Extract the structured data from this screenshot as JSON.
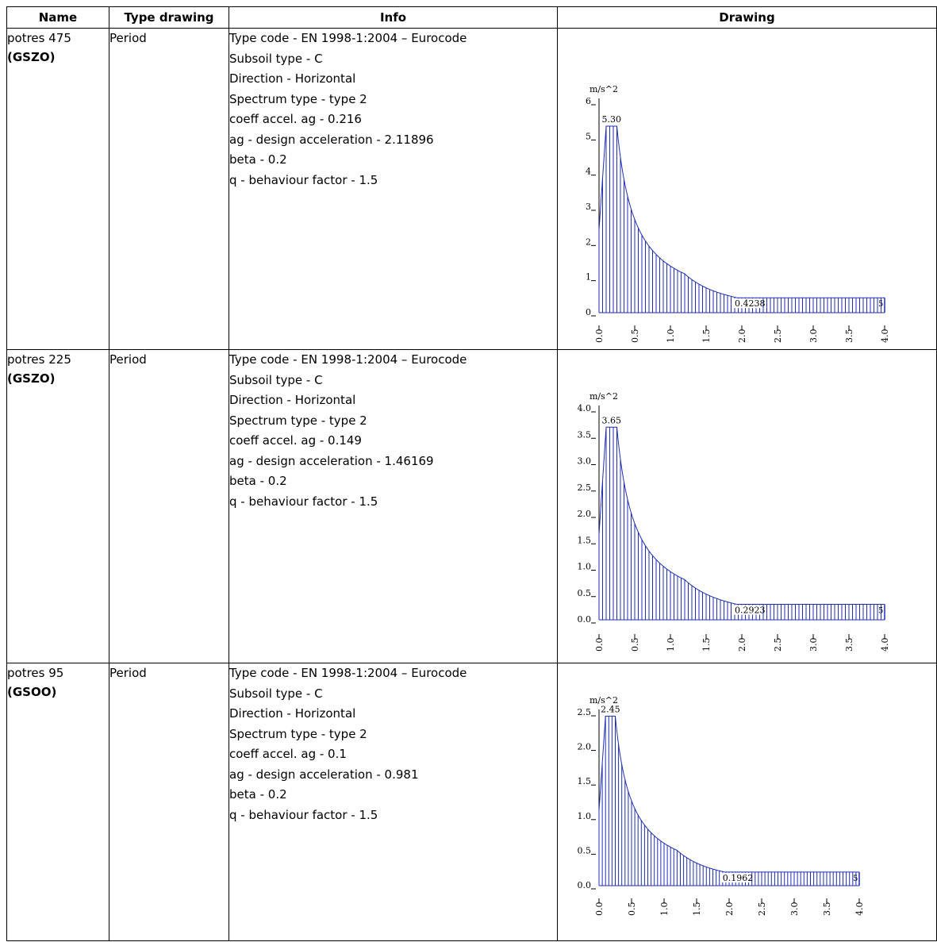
{
  "table": {
    "headers": [
      "Name",
      "Type drawing",
      "Info",
      "Drawing"
    ],
    "rows": [
      {
        "name": "potres 475",
        "code": "(GSZO)",
        "type": "Period",
        "info": [
          "Type code - EN 1998-1:2004 – Eurocode",
          "Subsoil type - C",
          "Direction - Horizontal",
          "Spectrum type - type 2",
          "coeff accel. ag - 0.216",
          "ag - design acceleration - 2.11896",
          "beta - 0.2",
          "q - behaviour factor - 1.5"
        ]
      },
      {
        "name": "potres 225",
        "code": "(GSZO)",
        "type": "Period",
        "info": [
          "Type code - EN 1998-1:2004 – Eurocode",
          "Subsoil type - C",
          "Direction - Horizontal",
          "Spectrum type - type 2",
          "coeff accel. ag - 0.149",
          "ag - design acceleration - 1.46169",
          "beta - 0.2",
          "q - behaviour factor - 1.5"
        ]
      },
      {
        "name": "potres 95",
        "code": "(GSOO)",
        "type": "Period",
        "info": [
          "Type code - EN 1998-1:2004 – Eurocode",
          "Subsoil type - C",
          "Direction - Horizontal",
          "Spectrum type - type 2",
          "coeff accel. ag - 0.1",
          "ag - design acceleration - 0.981",
          "beta - 0.2",
          "q - behaviour factor - 1.5"
        ]
      }
    ]
  },
  "chart_data": [
    {
      "type": "area",
      "ylabel": "m/s^2",
      "xlim": [
        0,
        4.0
      ],
      "ylim": [
        0,
        6
      ],
      "yticks": [
        "0",
        "1",
        "2",
        "3",
        "4",
        "5",
        "6"
      ],
      "xticks": [
        "0.0",
        "0.5",
        "1.0",
        "1.5",
        "2.0",
        "2.5",
        "3.0",
        "3.5",
        "4.0"
      ],
      "peak_label": "5.30",
      "floor_label": "0.4238",
      "end_label": "5",
      "series": [
        {
          "peak": 5.3,
          "floor": 0.4238,
          "start": 2.35,
          "tb": 0.1,
          "tc": 0.25,
          "td": 1.2
        }
      ],
      "grid": false
    },
    {
      "type": "area",
      "ylabel": "m/s^2",
      "xlim": [
        0,
        4.0
      ],
      "ylim": [
        0,
        4.0
      ],
      "yticks": [
        "0.0",
        "0.5",
        "1.0",
        "1.5",
        "2.0",
        "2.5",
        "3.0",
        "3.5",
        "4.0"
      ],
      "xticks": [
        "0.0",
        "0.5",
        "1.0",
        "1.5",
        "2.0",
        "2.5",
        "3.0",
        "3.5",
        "4.0"
      ],
      "peak_label": "3.65",
      "floor_label": "0.2923",
      "end_label": "5",
      "series": [
        {
          "peak": 3.65,
          "floor": 0.2923,
          "start": 1.62,
          "tb": 0.1,
          "tc": 0.25,
          "td": 1.2
        }
      ],
      "grid": false
    },
    {
      "type": "area",
      "ylabel": "m/s^2",
      "xlim": [
        0,
        4.0
      ],
      "ylim": [
        0,
        2.5
      ],
      "yticks": [
        "0.0",
        "0.5",
        "1.0",
        "1.5",
        "2.0",
        "2.5"
      ],
      "xticks": [
        "0.0",
        "0.5",
        "1.0",
        "1.5",
        "2.0",
        "2.5",
        "3.0",
        "3.5",
        "4.0"
      ],
      "peak_label": "2.45",
      "floor_label": "0.1962",
      "end_label": "5",
      "series": [
        {
          "peak": 2.45,
          "floor": 0.1962,
          "start": 1.09,
          "tb": 0.1,
          "tc": 0.25,
          "td": 1.2
        }
      ],
      "grid": false
    }
  ]
}
